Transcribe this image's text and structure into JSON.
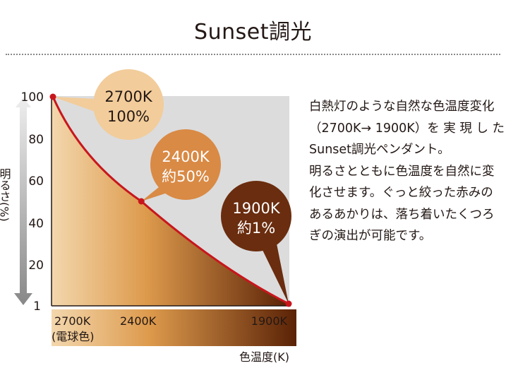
{
  "title": "Sunset調光",
  "description": [
    "白熱灯のような自然な色温度変化",
    "（2700K→ 1900K）を 実 現 し た",
    "Sunset調光ペンダント。",
    "明るさとともに色温度を自然に変",
    "化させます。ぐっと絞った赤みの",
    "あるあかりは、落ち着いたくつろ",
    "ぎの演出が可能です。"
  ],
  "chart_data": {
    "type": "area",
    "xlabel": "色温度(K)",
    "ylabel": "明るさ(%)",
    "x_tick_labels": [
      "2700K",
      "2400K",
      "1900K"
    ],
    "x_tick_sublabel": "(電球色)",
    "y_tick_labels": [
      "100",
      "80",
      "60",
      "40",
      "20",
      "1"
    ],
    "xlim": [
      2700,
      1900
    ],
    "ylim": [
      0,
      100
    ],
    "points": [
      {
        "x": 2700,
        "y": 100,
        "callout": [
          "2700K",
          "100%"
        ],
        "color": "#f2cc9a",
        "text_color": "#231815"
      },
      {
        "x": 2400,
        "y": 50,
        "callout": [
          "2400K",
          "約50%"
        ],
        "color": "#d98a45",
        "text_color": "#ffffff"
      },
      {
        "x": 1900,
        "y": 1,
        "callout": [
          "1900K",
          "約1%"
        ],
        "color": "#6a2d0f",
        "text_color": "#ffffff"
      }
    ],
    "line_color": "#c8161d",
    "gradient_colors": [
      "#f3d7ad",
      "#dd9a4c",
      "#5a2206"
    ],
    "background_color": "#dcdcdd",
    "grid": false
  }
}
